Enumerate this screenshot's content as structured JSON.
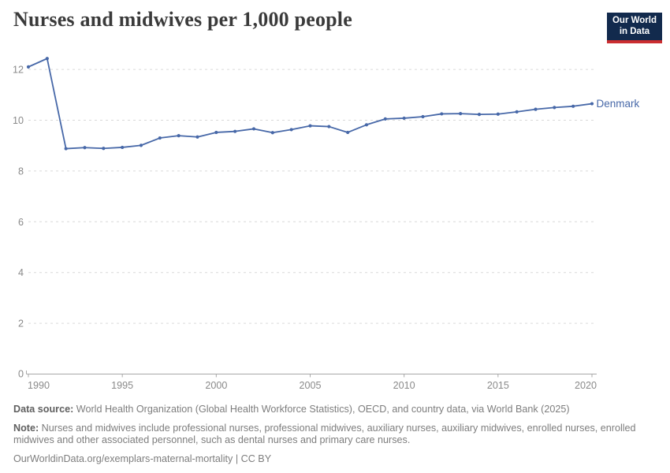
{
  "header": {
    "title": "Nurses and midwives per 1,000 people",
    "logo": {
      "line1": "Our World",
      "line2": "in Data"
    }
  },
  "chart_data": {
    "type": "line",
    "title": "Nurses and midwives per 1,000 people",
    "series": [
      {
        "name": "Denmark",
        "x": [
          1990,
          1991,
          1992,
          1993,
          1994,
          1995,
          1996,
          1997,
          1998,
          1999,
          2000,
          2001,
          2002,
          2003,
          2004,
          2005,
          2006,
          2007,
          2008,
          2009,
          2010,
          2011,
          2012,
          2013,
          2014,
          2015,
          2016,
          2017,
          2018,
          2019,
          2020
        ],
        "values": [
          12.1,
          12.43,
          8.88,
          8.92,
          8.89,
          8.93,
          9.01,
          9.3,
          9.39,
          9.34,
          9.52,
          9.56,
          9.66,
          9.51,
          9.63,
          9.78,
          9.75,
          9.52,
          9.82,
          10.05,
          10.08,
          10.14,
          10.25,
          10.26,
          10.23,
          10.24,
          10.33,
          10.43,
          10.5,
          10.55,
          10.65
        ]
      }
    ],
    "xlabel": "",
    "ylabel": "",
    "xlim": [
      1990,
      2020
    ],
    "ylim": [
      0,
      12.6
    ],
    "x_ticks": [
      1990,
      1995,
      2000,
      2005,
      2010,
      2015,
      2020
    ],
    "y_ticks": [
      0,
      2,
      4,
      6,
      8,
      10,
      12
    ],
    "grid": "horizontal-dashed",
    "legend_position": "right-of-last-point",
    "entity_label": "Denmark",
    "marker": "dot",
    "colors": {
      "line": "#4768a8",
      "entity_label": "#4768a8",
      "grid": "#d9d9d9",
      "axis": "#a8a8a8",
      "tick_label": "#8a8a8a"
    }
  },
  "footer": {
    "source_label": "Data source:",
    "source_text": " World Health Organization (Global Health Workforce Statistics), OECD, and country data, via World Bank (2025)",
    "note_label": "Note:",
    "note_text": " Nurses and midwives include professional nurses, professional midwives, auxiliary nurses, auxiliary midwives, enrolled nurses, enrolled midwives and other associated personnel, such as dental nurses and primary care nurses.",
    "url": "OurWorldinData.org/exemplars-maternal-mortality",
    "separator": " | ",
    "license": "CC BY"
  }
}
